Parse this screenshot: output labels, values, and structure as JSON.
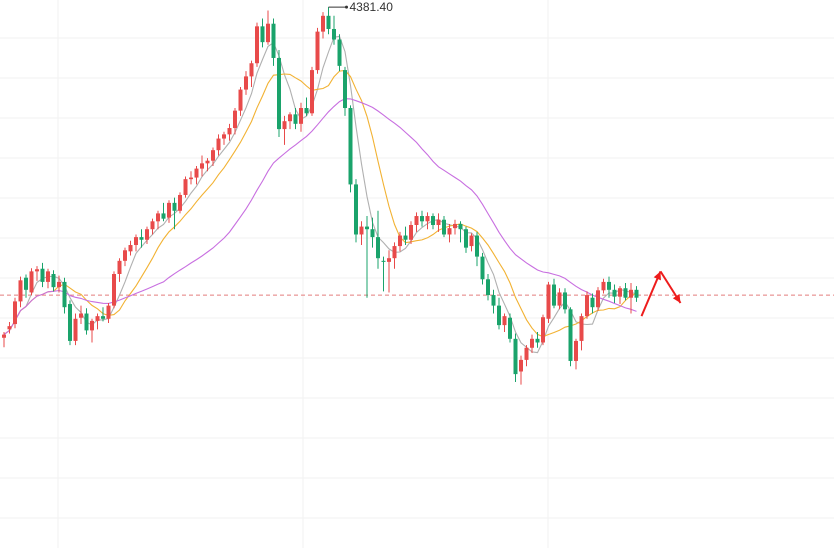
{
  "chart_data": {
    "type": "candlestick",
    "title": "",
    "xlabel": "",
    "ylabel": "",
    "grid": true,
    "ylim": [
      3355,
      4395
    ],
    "reference_price": 3835,
    "peak_annotation": {
      "label": "4381.40",
      "value": 4381.4
    },
    "colors": {
      "up": "#e84a4a",
      "down": "#1aa36b",
      "ma_short": "#b0b0b0",
      "ma_mid": "#f2b233",
      "ma_long": "#c86fe0",
      "reference_line": "#e47c7c",
      "projection_arrow": "#ee1c1c",
      "grid": "#f2f2f2"
    },
    "candles": [
      [
        3754,
        3765,
        3736,
        3760
      ],
      [
        3770,
        3784,
        3762,
        3776
      ],
      [
        3780,
        3830,
        3772,
        3823
      ],
      [
        3823,
        3870,
        3812,
        3863
      ],
      [
        3868,
        3874,
        3830,
        3845
      ],
      [
        3840,
        3886,
        3835,
        3880
      ],
      [
        3880,
        3890,
        3862,
        3884
      ],
      [
        3885,
        3896,
        3850,
        3860
      ],
      [
        3860,
        3885,
        3848,
        3880
      ],
      [
        3875,
        3882,
        3842,
        3850
      ],
      [
        3850,
        3872,
        3840,
        3860
      ],
      [
        3860,
        3868,
        3800,
        3812
      ],
      [
        3818,
        3825,
        3740,
        3748
      ],
      [
        3748,
        3800,
        3740,
        3790
      ],
      [
        3792,
        3815,
        3780,
        3800
      ],
      [
        3800,
        3810,
        3760,
        3768
      ],
      [
        3768,
        3790,
        3745,
        3786
      ],
      [
        3786,
        3800,
        3770,
        3795
      ],
      [
        3795,
        3812,
        3785,
        3790
      ],
      [
        3790,
        3820,
        3782,
        3815
      ],
      [
        3815,
        3880,
        3810,
        3875
      ],
      [
        3875,
        3905,
        3860,
        3900
      ],
      [
        3900,
        3925,
        3890,
        3920
      ],
      [
        3918,
        3938,
        3910,
        3930
      ],
      [
        3930,
        3950,
        3918,
        3945
      ],
      [
        3945,
        3960,
        3925,
        3940
      ],
      [
        3940,
        3965,
        3932,
        3960
      ],
      [
        3960,
        3980,
        3950,
        3975
      ],
      [
        3975,
        3995,
        3960,
        3990
      ],
      [
        3990,
        4010,
        3975,
        3980
      ],
      [
        3982,
        4015,
        3972,
        4010
      ],
      [
        4010,
        4020,
        3960,
        3995
      ],
      [
        3995,
        4030,
        3990,
        4025
      ],
      [
        4025,
        4060,
        4020,
        4055
      ],
      [
        4055,
        4070,
        4045,
        4058
      ],
      [
        4058,
        4080,
        4045,
        4075
      ],
      [
        4075,
        4100,
        4060,
        4085
      ],
      [
        4085,
        4095,
        4070,
        4090
      ],
      [
        4090,
        4115,
        4080,
        4110
      ],
      [
        4110,
        4140,
        4100,
        4132
      ],
      [
        4132,
        4145,
        4120,
        4140
      ],
      [
        4140,
        4160,
        4128,
        4152
      ],
      [
        4152,
        4190,
        4140,
        4185
      ],
      [
        4185,
        4230,
        4175,
        4225
      ],
      [
        4225,
        4260,
        4215,
        4250
      ],
      [
        4250,
        4280,
        4230,
        4275
      ],
      [
        4275,
        4352,
        4268,
        4345
      ],
      [
        4345,
        4360,
        4305,
        4315
      ],
      [
        4315,
        4375,
        4310,
        4350
      ],
      [
        4350,
        4360,
        4270,
        4285
      ],
      [
        4285,
        4300,
        4135,
        4150
      ],
      [
        4150,
        4175,
        4120,
        4165
      ],
      [
        4165,
        4182,
        4150,
        4178
      ],
      [
        4178,
        4190,
        4150,
        4160
      ],
      [
        4160,
        4200,
        4145,
        4190
      ],
      [
        4190,
        4210,
        4175,
        4180
      ],
      [
        4180,
        4268,
        4175,
        4262
      ],
      [
        4262,
        4342,
        4255,
        4335
      ],
      [
        4335,
        4372,
        4322,
        4365
      ],
      [
        4365,
        4381.4,
        4330,
        4340
      ],
      [
        4340,
        4365,
        4310,
        4320
      ],
      [
        4320,
        4330,
        4260,
        4270
      ],
      [
        4262,
        4268,
        4175,
        4190
      ],
      [
        4190,
        4195,
        4030,
        4045
      ],
      [
        4045,
        4055,
        3935,
        3950
      ],
      [
        3950,
        3975,
        3930,
        3965
      ],
      [
        3965,
        3985,
        3830,
        3960
      ],
      [
        3960,
        3982,
        3925,
        3945
      ],
      [
        3945,
        3995,
        3885,
        3905
      ],
      [
        3900,
        3908,
        3842,
        3898
      ],
      [
        3898,
        3920,
        3840,
        3905
      ],
      [
        3905,
        3935,
        3885,
        3928
      ],
      [
        3928,
        3955,
        3918,
        3948
      ],
      [
        3948,
        3965,
        3930,
        3940
      ],
      [
        3940,
        3975,
        3932,
        3968
      ],
      [
        3968,
        3992,
        3955,
        3985
      ],
      [
        3985,
        3995,
        3965,
        3975
      ],
      [
        3975,
        3992,
        3960,
        3985
      ],
      [
        3985,
        3990,
        3960,
        3968
      ],
      [
        3968,
        3990,
        3955,
        3978
      ],
      [
        3978,
        3985,
        3945,
        3950
      ],
      [
        3950,
        3970,
        3935,
        3962
      ],
      [
        3962,
        3978,
        3950,
        3970
      ],
      [
        3970,
        3975,
        3935,
        3960
      ],
      [
        3960,
        3965,
        3915,
        3925
      ],
      [
        3928,
        3952,
        3918,
        3948
      ],
      [
        3948,
        3955,
        3890,
        3908
      ],
      [
        3908,
        3915,
        3855,
        3865
      ],
      [
        3865,
        3875,
        3825,
        3835
      ],
      [
        3835,
        3845,
        3800,
        3815
      ],
      [
        3815,
        3830,
        3770,
        3778
      ],
      [
        3778,
        3800,
        3765,
        3795
      ],
      [
        3792,
        3800,
        3745,
        3752
      ],
      [
        3752,
        3762,
        3670,
        3685
      ],
      [
        3690,
        3720,
        3665,
        3712
      ],
      [
        3712,
        3740,
        3700,
        3735
      ],
      [
        3735,
        3760,
        3725,
        3752
      ],
      [
        3752,
        3765,
        3735,
        3745
      ],
      [
        3745,
        3798,
        3740,
        3793
      ],
      [
        3790,
        3860,
        3782,
        3855
      ],
      [
        3855,
        3866,
        3810,
        3815
      ],
      [
        3815,
        3848,
        3808,
        3840
      ],
      [
        3840,
        3848,
        3800,
        3808
      ],
      [
        3808,
        3812,
        3700,
        3710
      ],
      [
        3710,
        3752,
        3694,
        3748
      ],
      [
        3748,
        3800,
        3730,
        3795
      ],
      [
        3795,
        3842,
        3790,
        3835
      ],
      [
        3830,
        3838,
        3800,
        3812
      ],
      [
        3812,
        3850,
        3805,
        3844
      ],
      [
        3844,
        3866,
        3838,
        3860
      ],
      [
        3860,
        3870,
        3830,
        3845
      ],
      [
        3845,
        3855,
        3820,
        3832
      ],
      [
        3832,
        3852,
        3818,
        3848
      ],
      [
        3848,
        3858,
        3825,
        3830
      ],
      [
        3830,
        3858,
        3800,
        3845
      ],
      [
        3845,
        3852,
        3822,
        3830
      ]
    ],
    "moving_averages": [
      {
        "period": 5,
        "color_key": "ma_short"
      },
      {
        "period": 10,
        "color_key": "ma_mid"
      },
      {
        "period": 30,
        "color_key": "ma_long"
      }
    ],
    "projection": [
      3795,
      3880,
      3820
    ]
  }
}
